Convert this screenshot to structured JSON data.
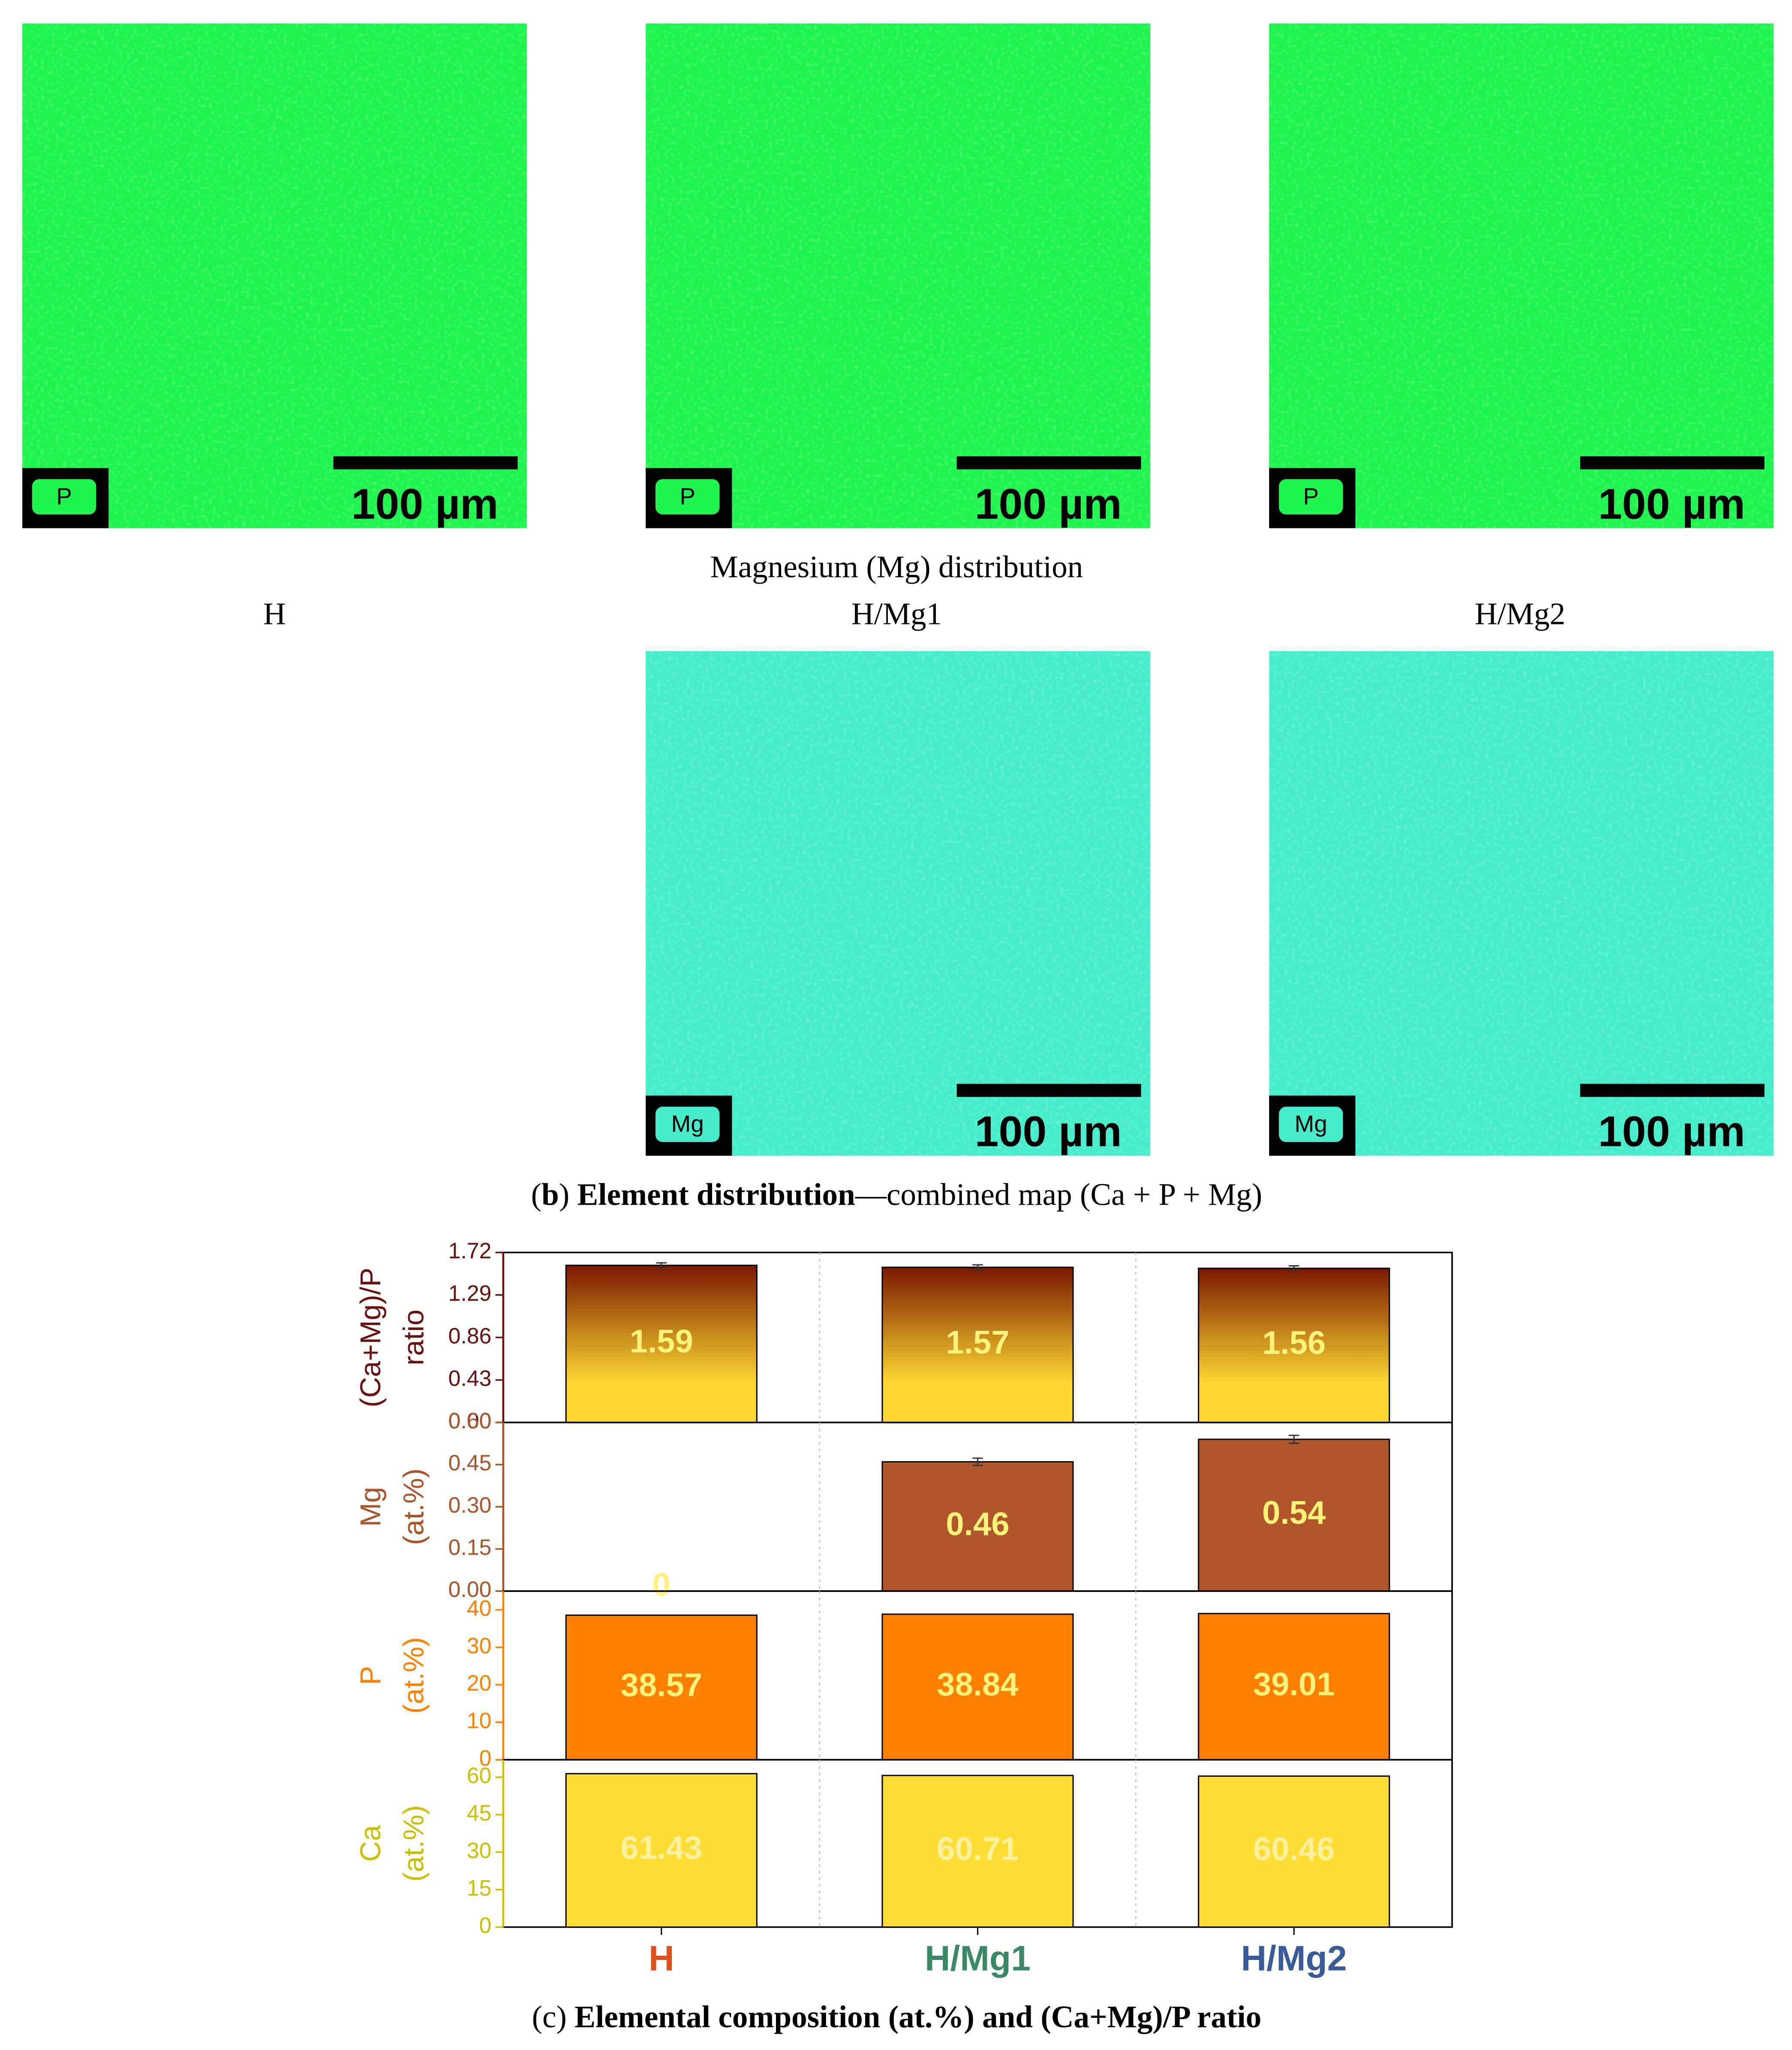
{
  "element_maps": {
    "row1": [
      {
        "element": "P",
        "scale": "100 µm"
      },
      {
        "element": "P",
        "scale": "100 µm"
      },
      {
        "element": "P",
        "scale": "100 µm"
      }
    ],
    "row1_color": "#1ef54f",
    "mg_title": "Magnesium (Mg) distribution",
    "samples": [
      "H",
      "H/Mg1",
      "H/Mg2"
    ],
    "row2": [
      {
        "element": "Mg",
        "scale": "100 µm"
      },
      {
        "element": "Mg",
        "scale": "100 µm"
      }
    ],
    "row2_color": "#45eec8"
  },
  "caption_b": [
    {
      "text": "(",
      "bold": false
    },
    {
      "text": "b",
      "bold": true
    },
    {
      "text": ") ",
      "bold": false
    },
    {
      "text": "Element distribution",
      "bold": true
    },
    {
      "text": "—combined map (Ca + P + Mg)",
      "bold": false
    }
  ],
  "chart_data": [
    {
      "type": "bar",
      "ylabel": [
        "(Ca+Mg)/P",
        "ratio"
      ],
      "label_color": "#6b1010",
      "values": [
        1.59,
        1.57,
        1.56
      ],
      "errors": [
        0.005,
        0.005,
        0.005
      ],
      "gradient": [
        "#7a1800",
        "#ffd830"
      ],
      "value_color": "#fff27a",
      "ylim": [
        0,
        1.72
      ],
      "yticks": [
        {
          "value": 0,
          "label": "0.00"
        },
        0.43,
        0.86,
        1.29,
        1.72
      ]
    },
    {
      "type": "bar",
      "ylabel": [
        "Mg",
        "(at.%)"
      ],
      "label_color": "#a8552a",
      "values": [
        0,
        0.46,
        0.54
      ],
      "errors": [
        0,
        0.006,
        0.007
      ],
      "color": "#b0562a",
      "value_color": "#fff27a",
      "ylim": [
        0,
        0.6
      ],
      "yticks": [
        {
          "value": 0,
          "label": "0.00"
        },
        0.15,
        {
          "value": 0.3,
          "label": "0.30"
        },
        0.45,
        {
          "value": 0.6,
          "label": "0.60"
        }
      ]
    },
    {
      "type": "bar",
      "ylabel": [
        "P",
        "(at.%)"
      ],
      "label_color": "#ff8000",
      "values": [
        38.57,
        38.84,
        39.01
      ],
      "color": "#ff8000",
      "value_color": "#fff27a",
      "ylim": [
        0,
        45
      ],
      "yticks": [
        0,
        10,
        20,
        30,
        40
      ]
    },
    {
      "type": "bar",
      "ylabel": [
        "Ca",
        "(at.%)"
      ],
      "label_color": "#c8c000",
      "values": [
        61.43,
        60.71,
        60.46
      ],
      "color": "#ffdd33",
      "value_color": "#fff0a0",
      "ylim": [
        0,
        67
      ],
      "yticks": [
        0,
        15,
        30,
        45,
        60
      ],
      "categories": [
        "H",
        "H/Mg1",
        "H/Mg2"
      ],
      "category_colors": [
        "#e0501a",
        "#3a8a6a",
        "#3a5a9a"
      ]
    }
  ],
  "caption_c": [
    {
      "text": "(",
      "bold": false
    },
    {
      "text": "c",
      "bold": false
    },
    {
      "text": ") ",
      "bold": false
    },
    {
      "text": "Elemental composition (at.%) and (Ca+Mg)/P ratio",
      "bold": true
    }
  ]
}
